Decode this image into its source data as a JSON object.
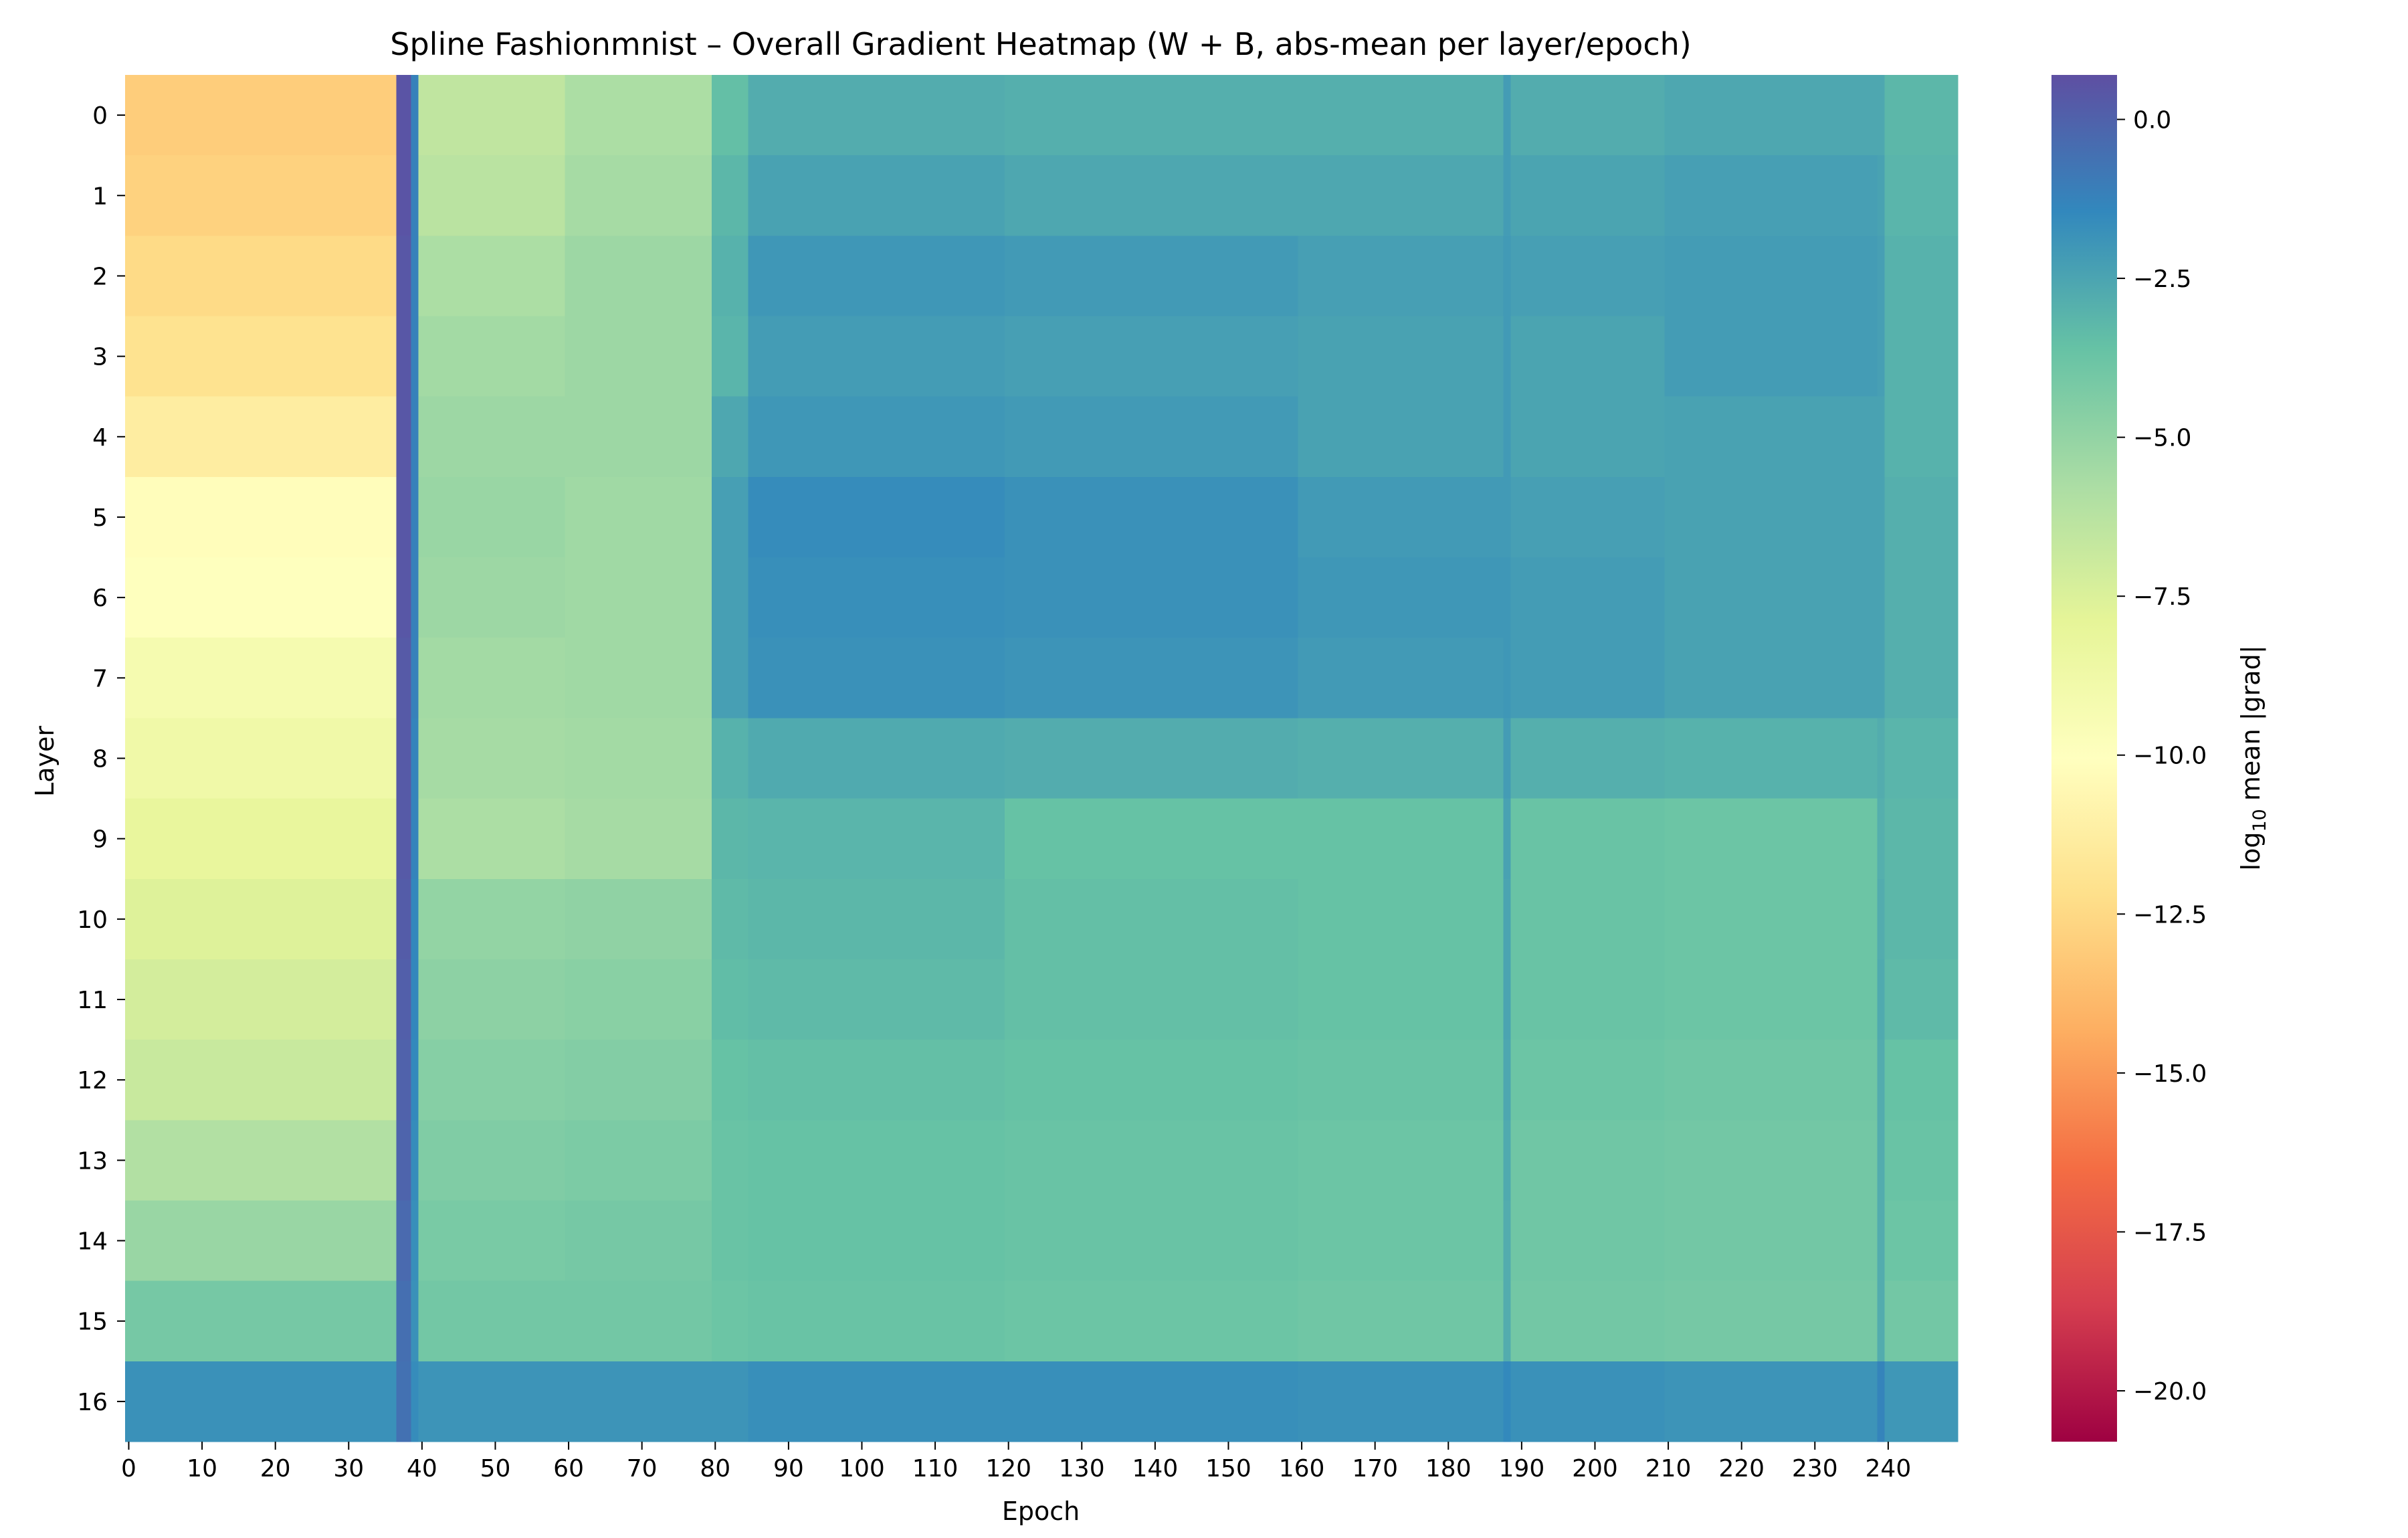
{
  "chart_data": {
    "type": "heatmap",
    "title": "Spline Fashionmnist – Overall Gradient Heatmap (W + B, abs-mean per layer/epoch)",
    "xlabel": "Epoch",
    "ylabel": "Layer",
    "colorbar_label": "log₁₀ mean |grad|",
    "colorbar_label_parts": [
      "log",
      "10",
      " mean |grad|"
    ],
    "colormap": "Spectral",
    "colormap_stops": [
      "#9e0142",
      "#d53e4f",
      "#f46d43",
      "#fdae61",
      "#fee08b",
      "#ffffbf",
      "#e6f598",
      "#abdda4",
      "#66c2a5",
      "#3288bd",
      "#5e4fa2"
    ],
    "vmin": -20.8,
    "vmax": 0.7,
    "colorbar_ticks": [
      0.0,
      -2.5,
      -5.0,
      -7.5,
      -10.0,
      -12.5,
      -15.0,
      -17.5,
      -20.0
    ],
    "colorbar_tick_labels": [
      "0.0",
      "−2.5",
      "−5.0",
      "−7.5",
      "−10.0",
      "−12.5",
      "−15.0",
      "−17.5",
      "−20.0"
    ],
    "n_epochs": 250,
    "x_ticks": [
      0,
      10,
      20,
      30,
      40,
      50,
      60,
      70,
      80,
      90,
      100,
      110,
      120,
      130,
      140,
      150,
      160,
      170,
      180,
      190,
      200,
      210,
      220,
      230,
      240
    ],
    "x_tick_labels": [
      "0",
      "10",
      "20",
      "30",
      "40",
      "50",
      "60",
      "70",
      "80",
      "90",
      "100",
      "110",
      "120",
      "130",
      "140",
      "150",
      "160",
      "170",
      "180",
      "190",
      "200",
      "210",
      "220",
      "230",
      "240"
    ],
    "layers": [
      "0",
      "1",
      "2",
      "3",
      "4",
      "5",
      "6",
      "7",
      "8",
      "9",
      "10",
      "11",
      "12",
      "13",
      "14",
      "15",
      "16"
    ],
    "segments": [
      {
        "epochs": [
          0,
          37
        ],
        "values": [
          -13.0,
          -12.8,
          -12.4,
          -12.0,
          -11.3,
          -10.2,
          -10.0,
          -9.2,
          -8.8,
          -8.2,
          -7.6,
          -7.2,
          -6.8,
          -6.0,
          -5.2,
          -4.1,
          -1.8
        ]
      },
      {
        "epochs": [
          37,
          39
        ],
        "values": [
          0.5,
          0.5,
          0.4,
          0.4,
          0.4,
          0.4,
          0.4,
          0.3,
          0.3,
          0.3,
          0.2,
          0.1,
          0.0,
          -0.1,
          -0.3,
          -0.5,
          -0.6
        ]
      },
      {
        "epochs": [
          39,
          40
        ],
        "values": [
          -1.2,
          -1.2,
          -1.2,
          -1.2,
          -1.2,
          -1.2,
          -1.2,
          -1.2,
          -1.3,
          -1.3,
          -1.4,
          -1.4,
          -1.5,
          -1.6,
          -1.7,
          -1.8,
          -1.6
        ]
      },
      {
        "epochs": [
          40,
          60
        ],
        "values": [
          -6.5,
          -6.3,
          -5.8,
          -5.5,
          -5.3,
          -5.2,
          -5.3,
          -5.5,
          -5.6,
          -5.8,
          -5.0,
          -4.8,
          -4.6,
          -4.4,
          -4.2,
          -4.0,
          -1.9
        ]
      },
      {
        "epochs": [
          60,
          80
        ],
        "values": [
          -5.8,
          -5.6,
          -5.3,
          -5.3,
          -5.3,
          -5.4,
          -5.4,
          -5.4,
          -5.5,
          -5.6,
          -4.9,
          -4.7,
          -4.5,
          -4.3,
          -4.1,
          -4.0,
          -1.9
        ]
      },
      {
        "epochs": [
          80,
          85
        ],
        "values": [
          -3.5,
          -3.2,
          -3.0,
          -3.1,
          -2.6,
          -2.3,
          -2.3,
          -2.3,
          -3.0,
          -3.2,
          -3.3,
          -3.4,
          -3.6,
          -3.7,
          -3.7,
          -3.8,
          -1.9
        ]
      },
      {
        "epochs": [
          85,
          120
        ],
        "values": [
          -2.8,
          -2.4,
          -2.0,
          -2.2,
          -2.0,
          -1.6,
          -1.7,
          -1.8,
          -2.7,
          -3.1,
          -3.2,
          -3.3,
          -3.5,
          -3.6,
          -3.6,
          -3.7,
          -1.7
        ]
      },
      {
        "epochs": [
          120,
          160
        ],
        "values": [
          -2.9,
          -2.6,
          -2.1,
          -2.3,
          -2.1,
          -1.8,
          -1.8,
          -1.9,
          -2.8,
          -3.6,
          -3.5,
          -3.5,
          -3.6,
          -3.7,
          -3.7,
          -3.8,
          -1.7
        ]
      },
      {
        "epochs": [
          160,
          188
        ],
        "values": [
          -2.9,
          -2.6,
          -2.3,
          -2.4,
          -2.4,
          -2.1,
          -2.0,
          -2.1,
          -2.9,
          -3.6,
          -3.6,
          -3.6,
          -3.7,
          -3.8,
          -3.8,
          -3.9,
          -1.8
        ]
      },
      {
        "epochs": [
          188,
          189
        ],
        "values": [
          -2.2,
          -2.2,
          -2.1,
          -2.1,
          -2.1,
          -2.1,
          -2.0,
          -2.0,
          -2.2,
          -2.4,
          -2.5,
          -2.5,
          -2.6,
          -2.7,
          -2.8,
          -2.8,
          -1.5
        ]
      },
      {
        "epochs": [
          189,
          210
        ],
        "values": [
          -2.8,
          -2.5,
          -2.3,
          -2.5,
          -2.5,
          -2.3,
          -2.2,
          -2.2,
          -2.9,
          -3.7,
          -3.7,
          -3.7,
          -3.8,
          -3.9,
          -3.9,
          -4.0,
          -1.8
        ]
      },
      {
        "epochs": [
          210,
          239
        ],
        "values": [
          -2.6,
          -2.3,
          -2.2,
          -2.2,
          -2.4,
          -2.4,
          -2.4,
          -2.4,
          -3.0,
          -3.8,
          -3.8,
          -3.8,
          -3.9,
          -4.0,
          -4.0,
          -4.1,
          -1.9
        ]
      },
      {
        "epochs": [
          239,
          240
        ],
        "values": [
          -2.6,
          -2.4,
          -2.3,
          -2.3,
          -2.4,
          -2.4,
          -2.4,
          -2.4,
          -2.8,
          -2.9,
          -2.8,
          -2.7,
          -2.8,
          -2.8,
          -2.8,
          -2.8,
          -1.3
        ]
      },
      {
        "epochs": [
          240,
          250
        ],
        "values": [
          -3.2,
          -3.1,
          -3.0,
          -3.0,
          -3.0,
          -2.9,
          -2.9,
          -2.9,
          -3.1,
          -3.2,
          -3.2,
          -3.3,
          -3.6,
          -3.7,
          -3.8,
          -4.0,
          -2.0
        ]
      }
    ]
  }
}
